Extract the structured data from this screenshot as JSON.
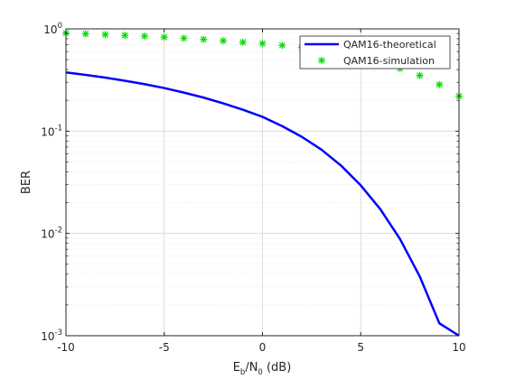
{
  "chart_data": {
    "type": "line",
    "xlabel": {
      "base1": "E",
      "sub1": "b",
      "mid": "/N",
      "sub2": "0",
      "tail": " (dB)"
    },
    "ylabel": "BER",
    "xlim": [
      -10,
      10
    ],
    "ylim": [
      0.001,
      1
    ],
    "yscale": "log",
    "grid": true,
    "legend_position": "top-right",
    "xticks": [
      -10,
      -5,
      0,
      5,
      10
    ],
    "xtick_labels": [
      "-10",
      "-5",
      "0",
      "5",
      "10"
    ],
    "ytick_labels": [
      {
        "base": "10",
        "exp": "0",
        "value": 1
      },
      {
        "base": "10",
        "exp": "-1",
        "value": 0.1
      },
      {
        "base": "10",
        "exp": "-2",
        "value": 0.01
      },
      {
        "base": "10",
        "exp": "-3",
        "value": 0.001
      }
    ],
    "series": [
      {
        "name": "QAM16-theoretical",
        "style": "line",
        "color": "#0000ff",
        "x": [
          -10,
          -9,
          -8,
          -7,
          -6,
          -5,
          -4,
          -3,
          -2,
          -1,
          0,
          1,
          2,
          3,
          4,
          5,
          6,
          7,
          8,
          9,
          10
        ],
        "y": [
          0.375,
          0.355,
          0.334,
          0.311,
          0.288,
          0.264,
          0.238,
          0.213,
          0.187,
          0.162,
          0.138,
          0.112,
          0.088,
          0.066,
          0.046,
          0.0295,
          0.0172,
          0.0088,
          0.0038,
          0.00132,
          0.00035
        ]
      },
      {
        "name": "QAM16-simulation",
        "style": "marker",
        "marker": "*",
        "color": "#00dd00",
        "x": [
          -10,
          -9,
          -8,
          -7,
          -6,
          -5,
          -4,
          -3,
          -2,
          -1,
          0,
          1,
          2,
          3,
          4,
          5,
          6,
          7,
          8,
          9,
          10
        ],
        "y": [
          0.91,
          0.895,
          0.88,
          0.865,
          0.85,
          0.83,
          0.81,
          0.79,
          0.765,
          0.74,
          0.72,
          0.69,
          0.66,
          0.62,
          0.58,
          0.53,
          0.47,
          0.41,
          0.35,
          0.285,
          0.22
        ]
      }
    ]
  }
}
